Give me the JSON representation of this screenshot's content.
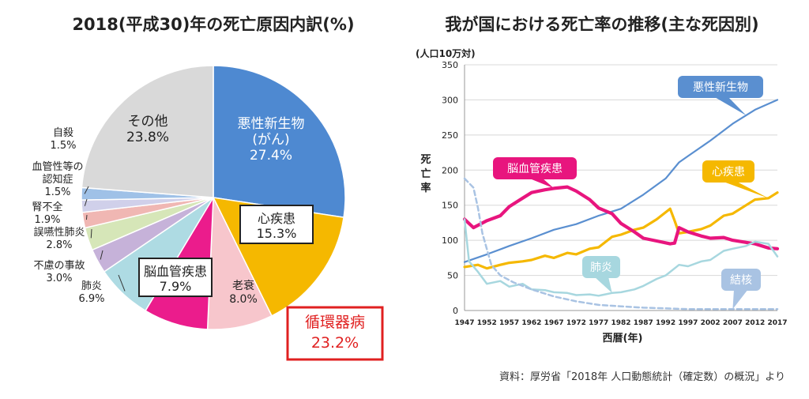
{
  "chart_data": [
    {
      "type": "pie",
      "title": "2018(平成30)年の死亡原因内訳(%)",
      "slices": [
        {
          "label": "悪性新生物\n(がん)",
          "value": 27.4,
          "color": "#4e89d1"
        },
        {
          "label": "心疾患",
          "value": 15.3,
          "color": "#f5b800"
        },
        {
          "label": "老衰",
          "value": 8.0,
          "color": "#f7c6cc"
        },
        {
          "label": "脳血管疾患",
          "value": 7.9,
          "color": "#eb1c8c"
        },
        {
          "label": "肺炎",
          "value": 6.9,
          "color": "#aedbe3"
        },
        {
          "label": "不慮の事故",
          "value": 3.0,
          "color": "#c6b2d9"
        },
        {
          "label": "誤嚥性肺炎",
          "value": 2.8,
          "color": "#d6e6b8"
        },
        {
          "label": "腎不全",
          "value": 1.9,
          "color": "#f0b7b3"
        },
        {
          "label": "血管性等の\n認知症",
          "value": 1.5,
          "color": "#d0d0ea"
        },
        {
          "label": "自殺",
          "value": 1.5,
          "color": "#9fc1e7"
        },
        {
          "label": "その他",
          "value": 23.8,
          "color": "#d9d9d9"
        }
      ],
      "group_annotation": {
        "label": "循環器病",
        "value": 23.2,
        "color": "#e02020"
      }
    },
    {
      "type": "line",
      "title": "我が国における死亡率の推移(主な死因別)",
      "xlabel": "西暦(年)",
      "ylabel": "死亡率",
      "yunit": "(人口10万対)",
      "xlim": [
        1947,
        2017
      ],
      "ylim": [
        0,
        350
      ],
      "xticks": [
        1947,
        1952,
        1957,
        1962,
        1967,
        1972,
        1977,
        1982,
        1987,
        1992,
        1997,
        2002,
        2007,
        2012,
        2017
      ],
      "yticks": [
        0,
        50,
        100,
        150,
        200,
        250,
        300,
        350
      ],
      "series": [
        {
          "name": "悪性新生物",
          "color": "#5a8fd0",
          "width": 2.2,
          "dash": "",
          "x": [
            1947,
            1952,
            1957,
            1962,
            1967,
            1972,
            1977,
            1982,
            1987,
            1992,
            1995,
            1997,
            2002,
            2007,
            2012,
            2017
          ],
          "y": [
            69,
            80,
            92,
            103,
            115,
            123,
            135,
            145,
            165,
            188,
            211,
            220,
            242,
            266,
            286,
            300
          ]
        },
        {
          "name": "心疾患",
          "color": "#f5b800",
          "width": 3.2,
          "dash": "",
          "x": [
            1947,
            1950,
            1952,
            1955,
            1957,
            1960,
            1962,
            1965,
            1967,
            1970,
            1972,
            1975,
            1977,
            1980,
            1982,
            1985,
            1987,
            1990,
            1993,
            1994,
            1995,
            1997,
            2000,
            2002,
            2005,
            2007,
            2010,
            2012,
            2015,
            2017
          ],
          "y": [
            62,
            65,
            60,
            65,
            68,
            70,
            72,
            78,
            75,
            82,
            80,
            88,
            90,
            105,
            108,
            115,
            118,
            130,
            145,
            128,
            110,
            112,
            116,
            121,
            135,
            138,
            150,
            158,
            160,
            168
          ]
        },
        {
          "name": "脳血管疾患",
          "color": "#e8157e",
          "width": 4.2,
          "dash": "",
          "x": [
            1947,
            1949,
            1952,
            1955,
            1957,
            1960,
            1962,
            1965,
            1967,
            1970,
            1972,
            1975,
            1977,
            1980,
            1982,
            1985,
            1987,
            1990,
            1993,
            1994,
            1995,
            1997,
            2000,
            2002,
            2005,
            2007,
            2010,
            2012,
            2015,
            2017
          ],
          "y": [
            130,
            118,
            128,
            135,
            148,
            160,
            168,
            172,
            174,
            176,
            170,
            158,
            146,
            138,
            124,
            112,
            103,
            99,
            95,
            96,
            118,
            112,
            106,
            103,
            104,
            100,
            97,
            95,
            89,
            88
          ]
        },
        {
          "name": "肺炎",
          "color": "#a7d7df",
          "width": 2.5,
          "dash": "",
          "x": [
            1947,
            1948,
            1950,
            1952,
            1955,
            1957,
            1960,
            1962,
            1965,
            1967,
            1970,
            1972,
            1975,
            1977,
            1980,
            1982,
            1985,
            1987,
            1990,
            1992,
            1995,
            1997,
            2000,
            2002,
            2005,
            2007,
            2010,
            2012,
            2015,
            2017
          ],
          "y": [
            130,
            70,
            55,
            38,
            42,
            34,
            38,
            30,
            29,
            26,
            25,
            22,
            23,
            21,
            25,
            26,
            30,
            35,
            45,
            50,
            65,
            63,
            70,
            72,
            85,
            88,
            92,
            98,
            95,
            77
          ]
        },
        {
          "name": "結核",
          "color": "#a9c3e3",
          "width": 2.5,
          "dash": "6,4",
          "x": [
            1947,
            1949,
            1950,
            1951,
            1953,
            1955,
            1958,
            1962,
            1967,
            1972,
            1977,
            1982,
            1987,
            1997,
            2007,
            2017
          ],
          "y": [
            188,
            175,
            146,
            110,
            65,
            50,
            40,
            30,
            20,
            13,
            8,
            6,
            4,
            2,
            2,
            2
          ]
        }
      ],
      "callouts": [
        {
          "text": "悪性新生物",
          "series": "悪性新生物",
          "bg": "#5a8fd0",
          "fg": "#ffffff"
        },
        {
          "text": "心疾患",
          "series": "心疾患",
          "bg": "#f5b800",
          "fg": "#ffffff"
        },
        {
          "text": "脳血管疾患",
          "series": "脳血管疾患",
          "bg": "#e8157e",
          "fg": "#ffffff"
        },
        {
          "text": "肺炎",
          "series": "肺炎",
          "bg": "#a7d7df",
          "fg": "#ffffff"
        },
        {
          "text": "結核",
          "series": "結核",
          "bg": "#a9c3e3",
          "fg": "#ffffff"
        }
      ]
    }
  ],
  "footer": {
    "source": "資料：厚労省「2018年 人口動態統計（確定数）の概況」より"
  }
}
